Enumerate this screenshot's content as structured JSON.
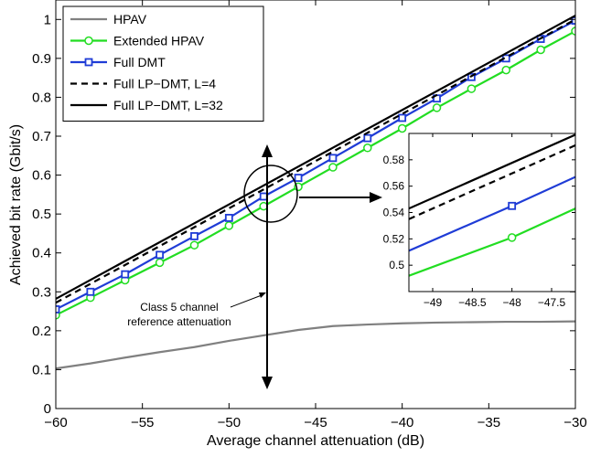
{
  "chart_data": [
    {
      "type": "line",
      "xlabel": "Average channel attenuation (dB)",
      "ylabel": "Achieved bit rate (Gbit/s)",
      "xlim": [
        -60,
        -30
      ],
      "ylim": [
        0,
        1.05
      ],
      "xticks": [
        -60,
        -55,
        -50,
        -45,
        -40,
        -35,
        -30
      ],
      "yticks": [
        0,
        0.1,
        0.2,
        0.3,
        0.4,
        0.5,
        0.6,
        0.7,
        0.8,
        0.9,
        1
      ],
      "grid": false,
      "legend_position": "top-left",
      "series": [
        {
          "name": "HPAV",
          "color": "#808080",
          "dash": "solid",
          "marker": "none",
          "x": [
            -60,
            -58,
            -56,
            -54,
            -52,
            -50,
            -48,
            -46,
            -44,
            -42,
            -40,
            -38,
            -36,
            -34,
            -32,
            -30
          ],
          "y": [
            0.103,
            0.116,
            0.131,
            0.145,
            0.158,
            0.174,
            0.188,
            0.202,
            0.212,
            0.216,
            0.219,
            0.221,
            0.222,
            0.223,
            0.223,
            0.224
          ]
        },
        {
          "name": "Extended HPAV",
          "color": "#22dd22",
          "dash": "solid",
          "marker": "circle",
          "x": [
            -60,
            -58,
            -56,
            -54,
            -52,
            -50,
            -48,
            -46,
            -44,
            -42,
            -40,
            -38,
            -36,
            -34,
            -32,
            -30
          ],
          "y": [
            0.24,
            0.285,
            0.33,
            0.375,
            0.42,
            0.47,
            0.52,
            0.57,
            0.62,
            0.67,
            0.72,
            0.773,
            0.822,
            0.87,
            0.922,
            0.97
          ]
        },
        {
          "name": "Full DMT",
          "color": "#1f3cd6",
          "dash": "solid",
          "marker": "square",
          "x": [
            -60,
            -58,
            -56,
            -54,
            -52,
            -50,
            -48,
            -46,
            -44,
            -42,
            -40,
            -38,
            -36,
            -34,
            -32,
            -30
          ],
          "y": [
            0.255,
            0.3,
            0.345,
            0.395,
            0.443,
            0.49,
            0.545,
            0.593,
            0.644,
            0.695,
            0.747,
            0.797,
            0.852,
            0.9,
            0.95,
            0.997
          ]
        },
        {
          "name": "Full LP−DMT, L=4",
          "color": "#000000",
          "dash": "dashed",
          "marker": "none",
          "x": [
            -60,
            -30
          ],
          "y": [
            0.272,
            1.0
          ]
        },
        {
          "name": "Full LP−DMT, L=32",
          "color": "#000000",
          "dash": "solid",
          "marker": "none",
          "x": [
            -60,
            -30
          ],
          "y": [
            0.282,
            1.01
          ]
        }
      ],
      "annotations": [
        "Class 5 channel",
        "reference attenuation"
      ]
    },
    {
      "type": "line",
      "xlim": [
        -49.3,
        -47.2
      ],
      "ylim": [
        0.48,
        0.6
      ],
      "xticks": [
        -49,
        -48.5,
        -48,
        -47.5
      ],
      "xtick_labels": [
        "−49",
        "−48.5",
        "−48",
        "−47.5"
      ],
      "yticks": [
        0.5,
        0.52,
        0.54,
        0.56,
        0.58
      ],
      "series": [
        {
          "name": "Extended HPAV",
          "color": "#22dd22",
          "dash": "solid",
          "marker": "circle",
          "x": [
            -49.3,
            -48,
            -47.2
          ],
          "y": [
            0.492,
            0.521,
            0.543
          ]
        },
        {
          "name": "Full DMT",
          "color": "#1f3cd6",
          "dash": "solid",
          "marker": "square",
          "x": [
            -49.3,
            -48,
            -47.2
          ],
          "y": [
            0.511,
            0.545,
            0.567
          ]
        },
        {
          "name": "Full LP−DMT, L=4",
          "color": "#000000",
          "dash": "dashed",
          "marker": "none",
          "x": [
            -49.3,
            -47.2
          ],
          "y": [
            0.535,
            0.591
          ]
        },
        {
          "name": "Full LP−DMT, L=32",
          "color": "#000000",
          "dash": "solid",
          "marker": "none",
          "x": [
            -49.3,
            -47.2
          ],
          "y": [
            0.543,
            0.599
          ]
        }
      ]
    }
  ]
}
